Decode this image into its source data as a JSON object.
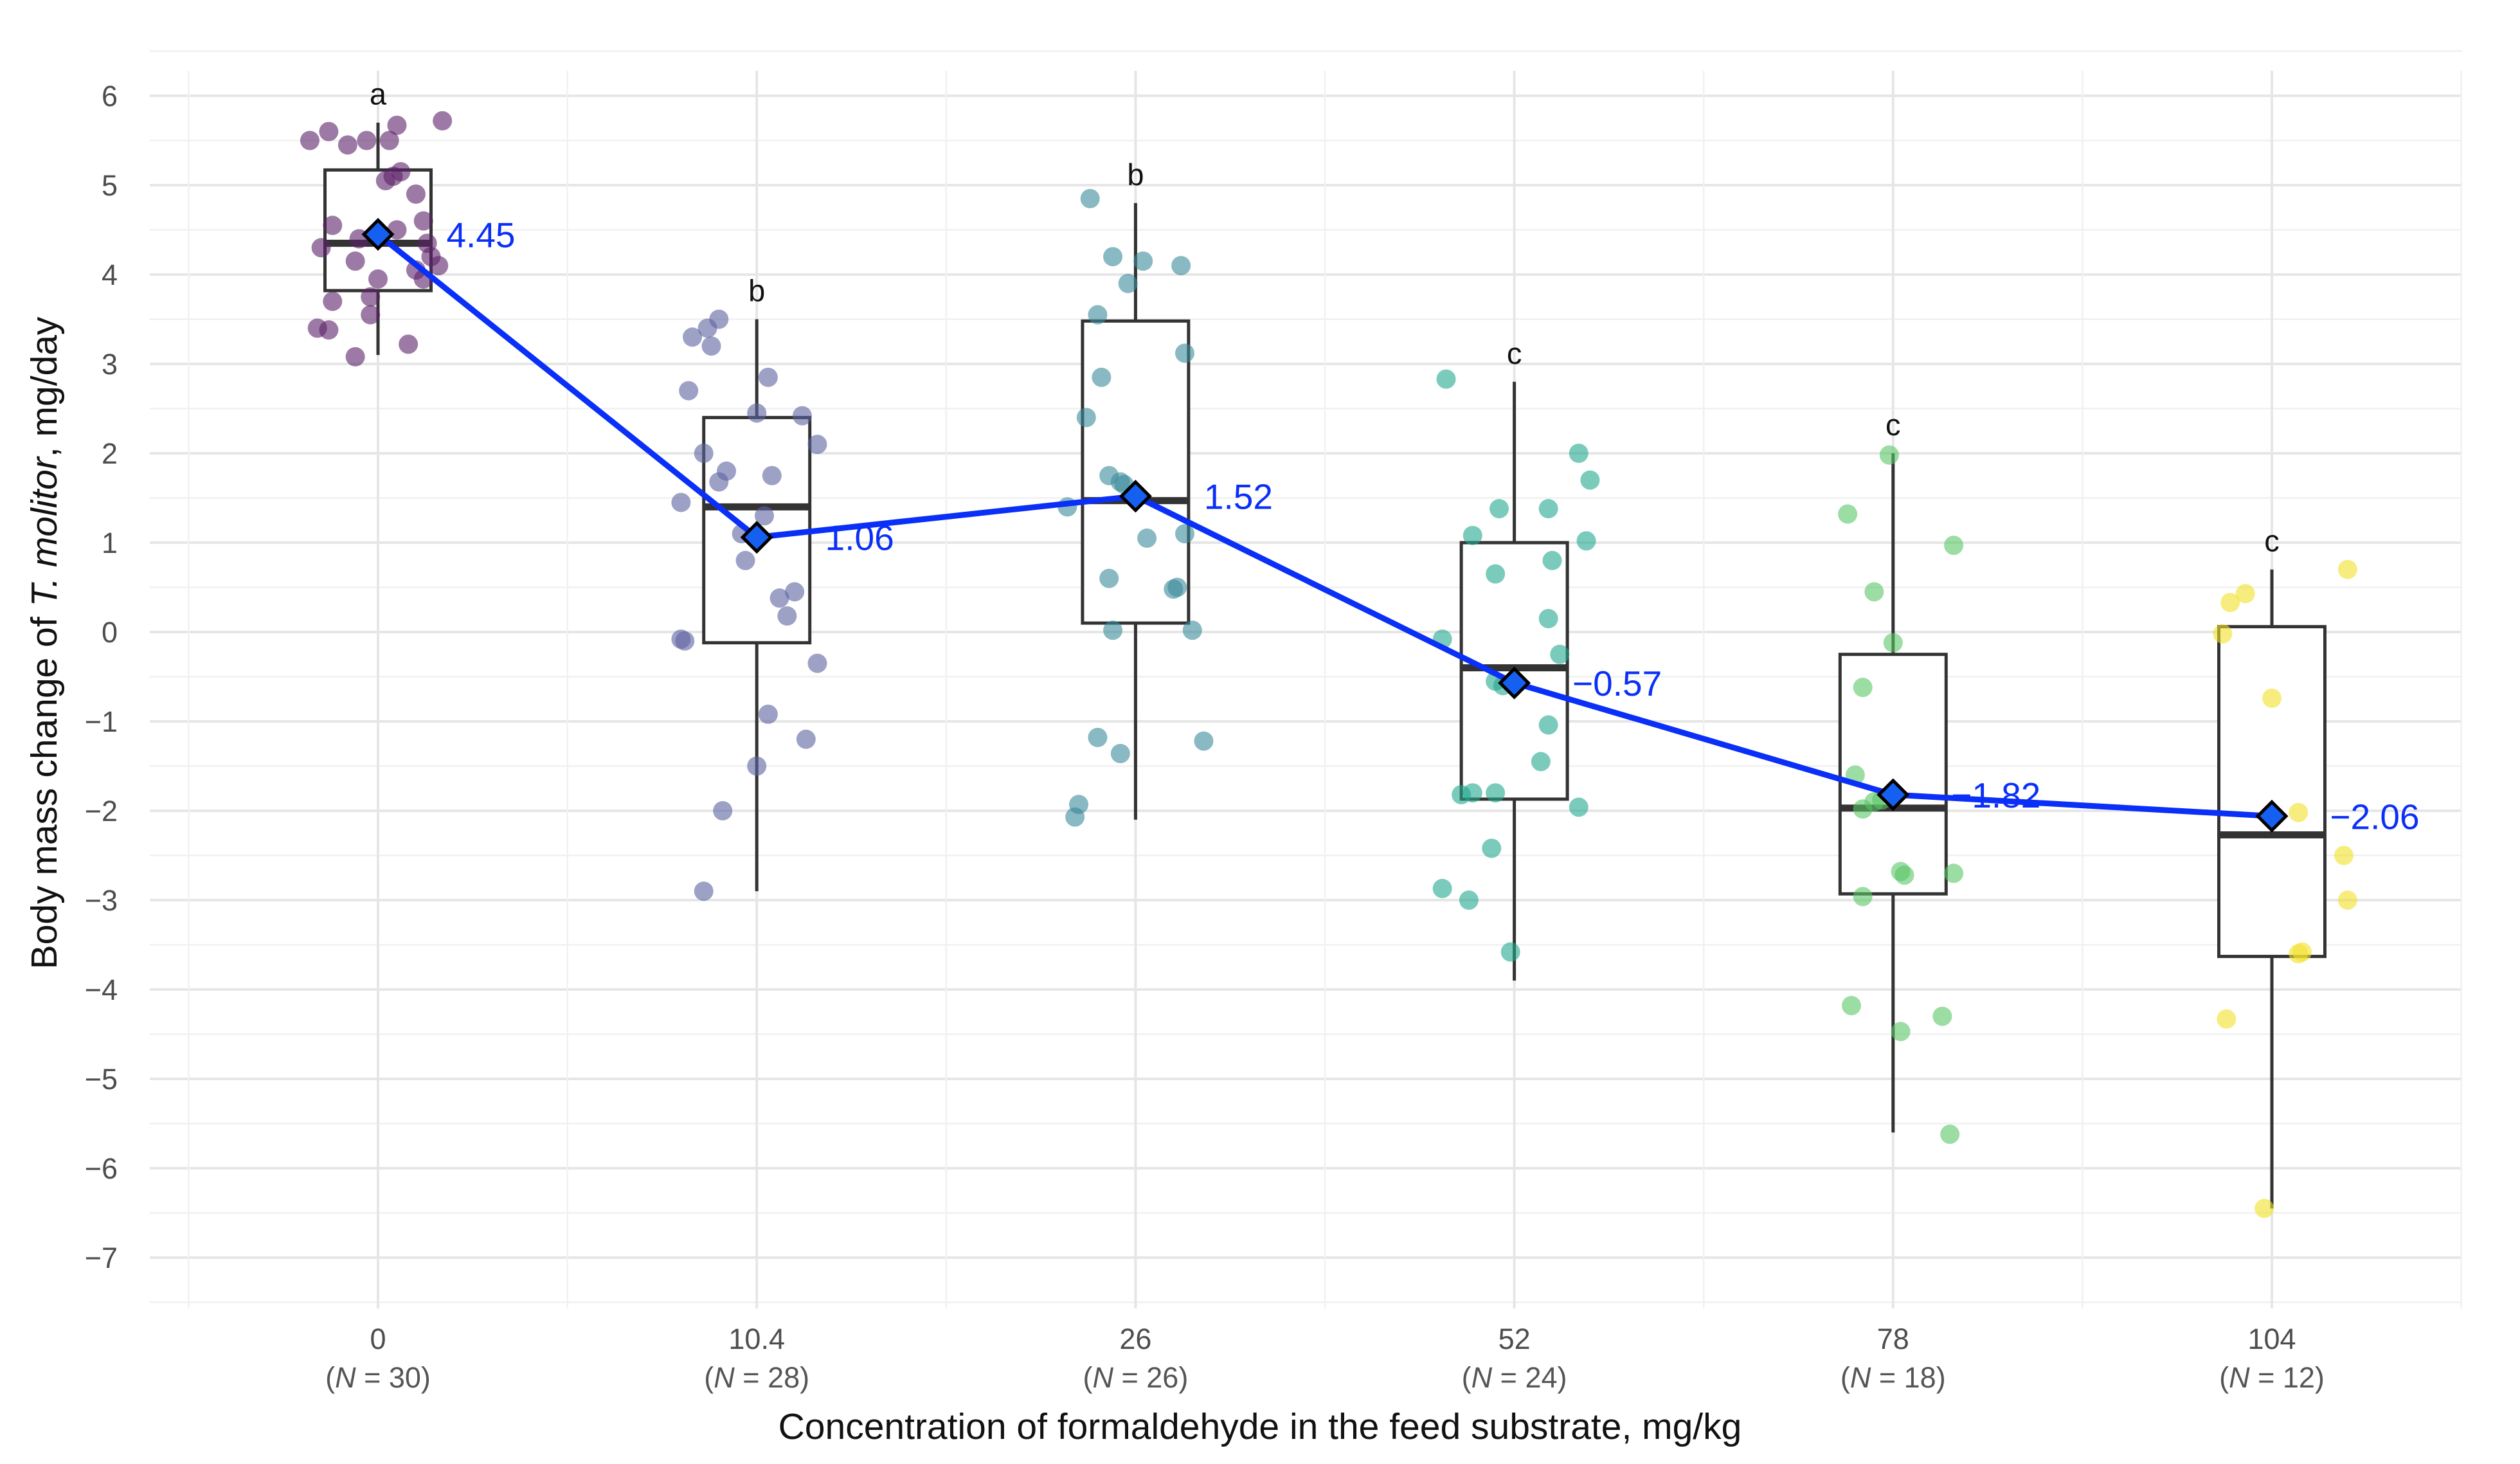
{
  "chart_data": {
    "type": "box",
    "xlabel": "Concentration of  formaldehyde  in the feed substrate, mg/kg",
    "ylabel_prefix": "Body mass change of ",
    "ylabel_italic": "T. molitor",
    "ylabel_suffix": ", mg/day",
    "ylim": [
      -7.5,
      6.5
    ],
    "yticks": [
      6,
      5,
      4,
      3,
      2,
      1,
      0,
      -1,
      -2,
      -3,
      -4,
      -5,
      -6,
      -7
    ],
    "ytick_labels": [
      "6",
      "5",
      "4",
      "3",
      "2",
      "1",
      "0",
      "−1",
      "−2",
      "−3",
      "−4",
      "−5",
      "−6",
      "−7"
    ],
    "grid": true,
    "mean_line_color": "#0a2ff7",
    "mean_marker_color": "#1560f0",
    "groups": [
      {
        "category": "0",
        "n_label_pre": "(",
        "n_label_var": "N",
        "n_label_post": " = 30)",
        "color": "#5c2169",
        "letter": "a",
        "q1": 3.82,
        "median": 4.35,
        "q3": 5.17,
        "whisker_low": 3.1,
        "whisker_high": 5.7,
        "mean": 4.45,
        "mean_label": "4.45",
        "points": [
          [
            -0.18,
            5.5
          ],
          [
            -0.13,
            5.6
          ],
          [
            -0.08,
            5.45
          ],
          [
            -0.03,
            5.5
          ],
          [
            0.05,
            5.67
          ],
          [
            0.03,
            5.5
          ],
          [
            0.17,
            5.72
          ],
          [
            -0.15,
            4.3
          ],
          [
            -0.12,
            4.55
          ],
          [
            -0.06,
            4.15
          ],
          [
            -0.05,
            4.4
          ],
          [
            -0.02,
            3.75
          ],
          [
            0.0,
            3.95
          ],
          [
            0.02,
            5.05
          ],
          [
            0.04,
            5.1
          ],
          [
            0.06,
            5.15
          ],
          [
            0.1,
            4.9
          ],
          [
            0.12,
            4.6
          ],
          [
            0.13,
            4.35
          ],
          [
            0.14,
            4.2
          ],
          [
            0.16,
            4.1
          ],
          [
            0.1,
            4.05
          ],
          [
            0.12,
            3.95
          ],
          [
            -0.12,
            3.7
          ],
          [
            -0.16,
            3.4
          ],
          [
            -0.13,
            3.38
          ],
          [
            -0.06,
            3.08
          ],
          [
            -0.02,
            3.55
          ],
          [
            0.08,
            3.22
          ],
          [
            0.05,
            4.5
          ]
        ]
      },
      {
        "category": "10.4",
        "n_label_pre": "(",
        "n_label_var": "N",
        "n_label_post": " = 28)",
        "color": "#5e62a0",
        "letter": "b",
        "q1": -0.12,
        "median": 1.4,
        "q3": 2.4,
        "whisker_low": -2.9,
        "whisker_high": 3.5,
        "mean": 1.06,
        "mean_label": "1.06",
        "points": [
          [
            -0.17,
            3.3
          ],
          [
            -0.13,
            3.4
          ],
          [
            -0.1,
            3.5
          ],
          [
            -0.12,
            3.2
          ],
          [
            0.03,
            2.85
          ],
          [
            -0.18,
            2.7
          ],
          [
            0.0,
            2.45
          ],
          [
            0.12,
            2.42
          ],
          [
            0.16,
            2.1
          ],
          [
            -0.14,
            2.0
          ],
          [
            -0.08,
            1.8
          ],
          [
            -0.1,
            1.68
          ],
          [
            0.04,
            1.75
          ],
          [
            -0.2,
            1.45
          ],
          [
            -0.04,
            1.1
          ],
          [
            0.02,
            1.3
          ],
          [
            -0.03,
            0.8
          ],
          [
            0.1,
            0.45
          ],
          [
            0.06,
            0.38
          ],
          [
            0.08,
            0.18
          ],
          [
            -0.2,
            -0.08
          ],
          [
            -0.19,
            -0.1
          ],
          [
            0.16,
            -0.35
          ],
          [
            0.03,
            -0.92
          ],
          [
            0.13,
            -1.2
          ],
          [
            0.0,
            -1.5
          ],
          [
            -0.09,
            -2.0
          ],
          [
            -0.14,
            -2.9
          ]
        ]
      },
      {
        "category": "26",
        "n_label_pre": "(",
        "n_label_var": "N",
        "n_label_post": " = 26)",
        "color": "#3b8b99",
        "letter": "b",
        "q1": 0.1,
        "median": 1.47,
        "q3": 3.48,
        "whisker_low": -2.1,
        "whisker_high": 4.8,
        "mean": 1.52,
        "mean_label": "1.52",
        "points": [
          [
            -0.12,
            4.85
          ],
          [
            -0.06,
            4.2
          ],
          [
            0.02,
            4.15
          ],
          [
            0.12,
            4.1
          ],
          [
            -0.02,
            3.9
          ],
          [
            -0.1,
            3.55
          ],
          [
            0.13,
            3.12
          ],
          [
            -0.09,
            2.85
          ],
          [
            -0.13,
            2.4
          ],
          [
            -0.07,
            1.75
          ],
          [
            -0.04,
            1.68
          ],
          [
            -0.03,
            1.65
          ],
          [
            -0.18,
            1.4
          ],
          [
            0.13,
            1.1
          ],
          [
            0.03,
            1.05
          ],
          [
            -0.07,
            0.6
          ],
          [
            0.1,
            0.48
          ],
          [
            0.11,
            0.5
          ],
          [
            -0.06,
            0.02
          ],
          [
            0.15,
            0.02
          ],
          [
            -0.1,
            -1.18
          ],
          [
            -0.04,
            -1.36
          ],
          [
            0.18,
            -1.22
          ],
          [
            -0.15,
            -1.93
          ],
          [
            -0.16,
            -2.07
          ],
          [
            0.0,
            1.55
          ]
        ]
      },
      {
        "category": "52",
        "n_label_pre": "(",
        "n_label_var": "N",
        "n_label_post": " = 24)",
        "color": "#23a88f",
        "letter": "c",
        "q1": -1.87,
        "median": -0.4,
        "q3": 1.0,
        "whisker_low": -3.9,
        "whisker_high": 2.8,
        "mean": -0.57,
        "mean_label": "−0.57",
        "points": [
          [
            -0.18,
            2.83
          ],
          [
            0.17,
            2.0
          ],
          [
            0.2,
            1.7
          ],
          [
            -0.11,
            1.08
          ],
          [
            -0.04,
            1.38
          ],
          [
            0.09,
            1.38
          ],
          [
            0.19,
            1.02
          ],
          [
            0.1,
            0.8
          ],
          [
            -0.05,
            0.65
          ],
          [
            0.09,
            0.15
          ],
          [
            -0.19,
            -0.08
          ],
          [
            0.12,
            -0.25
          ],
          [
            -0.05,
            -0.55
          ],
          [
            -0.03,
            -0.6
          ],
          [
            0.09,
            -1.04
          ],
          [
            0.07,
            -1.45
          ],
          [
            -0.14,
            -1.82
          ],
          [
            -0.11,
            -1.8
          ],
          [
            -0.05,
            -1.8
          ],
          [
            0.17,
            -1.96
          ],
          [
            -0.06,
            -2.42
          ],
          [
            -0.19,
            -2.87
          ],
          [
            -0.12,
            -3.0
          ],
          [
            -0.01,
            -3.58
          ]
        ]
      },
      {
        "category": "78",
        "n_label_pre": "(",
        "n_label_var": "N",
        "n_label_post": " = 18)",
        "color": "#58c765",
        "letter": "c",
        "q1": -2.93,
        "median": -1.97,
        "q3": -0.25,
        "whisker_low": -5.6,
        "whisker_high": 2.0,
        "mean": -1.82,
        "mean_label": "−1.82",
        "points": [
          [
            -0.01,
            1.98
          ],
          [
            -0.12,
            1.32
          ],
          [
            0.16,
            0.97
          ],
          [
            -0.05,
            0.45
          ],
          [
            0.0,
            -0.12
          ],
          [
            -0.08,
            -0.62
          ],
          [
            -0.1,
            -1.6
          ],
          [
            -0.08,
            -1.98
          ],
          [
            -0.05,
            -1.9
          ],
          [
            -0.03,
            -1.88
          ],
          [
            0.02,
            -2.68
          ],
          [
            0.03,
            -2.72
          ],
          [
            -0.08,
            -2.96
          ],
          [
            0.16,
            -2.7
          ],
          [
            0.13,
            -4.3
          ],
          [
            -0.11,
            -4.18
          ],
          [
            0.02,
            -4.47
          ],
          [
            0.15,
            -5.62
          ]
        ]
      },
      {
        "category": "104",
        "n_label_pre": "(",
        "n_label_var": "N",
        "n_label_post": " = 12)",
        "color": "#f2e12a",
        "letter": "c",
        "q1": -3.63,
        "median": -2.27,
        "q3": 0.06,
        "whisker_low": -6.45,
        "whisker_high": 0.7,
        "mean": -2.06,
        "mean_label": "−2.06",
        "points": [
          [
            0.2,
            0.7
          ],
          [
            -0.07,
            0.43
          ],
          [
            -0.11,
            0.33
          ],
          [
            -0.13,
            -0.02
          ],
          [
            0.0,
            -0.74
          ],
          [
            0.07,
            -2.02
          ],
          [
            0.19,
            -2.5
          ],
          [
            0.2,
            -3.0
          ],
          [
            0.08,
            -3.58
          ],
          [
            0.07,
            -3.6
          ],
          [
            -0.12,
            -4.33
          ],
          [
            -0.02,
            -6.45
          ]
        ]
      }
    ]
  }
}
